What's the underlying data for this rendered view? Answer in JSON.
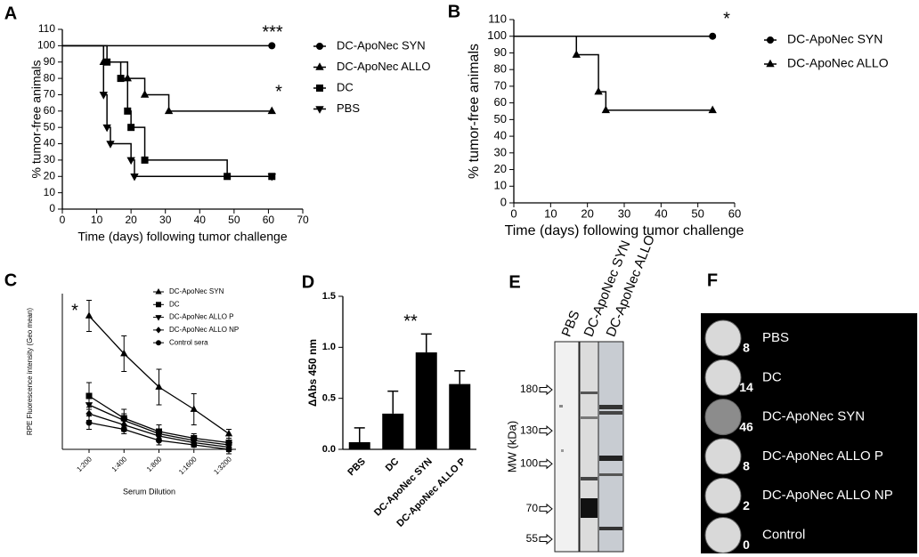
{
  "chart_data": [
    {
      "type": "step",
      "panel": "A",
      "xlabel": "Time (days) following tumor challenge",
      "ylabel": "% tumor-free animals",
      "xlim": [
        0,
        70
      ],
      "xticks": [
        0,
        10,
        20,
        30,
        40,
        50,
        60,
        70
      ],
      "ylim": [
        0,
        110
      ],
      "yticks": [
        0,
        10,
        20,
        30,
        40,
        50,
        60,
        70,
        80,
        90,
        100,
        110
      ],
      "legend": "right",
      "annotations": [
        "***",
        "*"
      ],
      "series": [
        {
          "name": "DC-ApoNec SYN",
          "color": "#000000",
          "marker": "circle",
          "x": [
            0,
            61
          ],
          "values": [
            100,
            100
          ]
        },
        {
          "name": "DC-ApoNec ALLO",
          "color": "#000000",
          "marker": "triangle-up",
          "x": [
            0,
            12,
            19,
            24,
            31,
            61
          ],
          "values": [
            100,
            90,
            80,
            70,
            60,
            60
          ]
        },
        {
          "name": "DC",
          "color": "#000000",
          "marker": "square",
          "x": [
            0,
            13,
            17,
            19,
            20,
            24,
            48,
            61
          ],
          "values": [
            100,
            90,
            80,
            60,
            50,
            30,
            20,
            20
          ]
        },
        {
          "name": "PBS",
          "color": "#000000",
          "marker": "triangle-down",
          "x": [
            0,
            12,
            13,
            14,
            20,
            21,
            61
          ],
          "values": [
            100,
            70,
            50,
            40,
            30,
            20,
            20
          ]
        }
      ]
    },
    {
      "type": "step",
      "panel": "B",
      "xlabel": "Time (days) following tumor challenge",
      "ylabel": "% tumor-free animals",
      "xlim": [
        0,
        60
      ],
      "xticks": [
        0,
        10,
        20,
        30,
        40,
        50,
        60
      ],
      "ylim": [
        0,
        110
      ],
      "yticks": [
        0,
        10,
        20,
        30,
        40,
        50,
        60,
        70,
        80,
        90,
        100,
        110
      ],
      "legend": "right",
      "annotations": [
        "*"
      ],
      "series": [
        {
          "name": "DC-ApoNec SYN",
          "color": "#000000",
          "marker": "circle",
          "x": [
            0,
            54
          ],
          "values": [
            100,
            100
          ]
        },
        {
          "name": "DC-ApoNec ALLO",
          "color": "#000000",
          "marker": "triangle-up",
          "x": [
            0,
            17,
            23,
            25,
            54
          ],
          "values": [
            100,
            88.9,
            66.7,
            55.6,
            55.6
          ]
        }
      ]
    },
    {
      "type": "line",
      "panel": "C",
      "xlabel": "Serum Dilution",
      "ylabel": "RPE Fluorescence intensity (Geo mean)",
      "categories": [
        "1:200",
        "1:400",
        "1:800",
        "1:1600",
        "1:3200"
      ],
      "ylim": [
        0,
        70
      ],
      "legend": "upper right",
      "annotations": [
        "*"
      ],
      "series": [
        {
          "name": "DC-ApoNec SYN",
          "color": "#000000",
          "marker": "triangle-up",
          "values": [
            60,
            43,
            28,
            18,
            7
          ],
          "errors": [
            7,
            8,
            8,
            7,
            2
          ]
        },
        {
          "name": "DC",
          "color": "#000000",
          "marker": "square",
          "values": [
            24,
            14,
            8,
            5,
            3
          ],
          "errors": [
            6,
            4,
            3,
            2,
            2
          ]
        },
        {
          "name": "DC-ApoNec ALLO P",
          "color": "#000000",
          "marker": "triangle-down",
          "values": [
            20,
            13,
            7,
            4,
            2
          ],
          "errors": [
            4,
            3,
            2,
            2,
            2
          ]
        },
        {
          "name": "DC-ApoNec ALLO NP",
          "color": "#000000",
          "marker": "diamond",
          "values": [
            16,
            11,
            6,
            3,
            1
          ],
          "errors": [
            3,
            3,
            2,
            2,
            2
          ]
        },
        {
          "name": "Control sera",
          "color": "#000000",
          "marker": "circle",
          "values": [
            12,
            9,
            4,
            2,
            0
          ],
          "errors": [
            3,
            2,
            2,
            1,
            2
          ]
        }
      ]
    },
    {
      "type": "bar",
      "panel": "D",
      "ylabel": "ΔAbs 450 nm",
      "categories": [
        "PBS",
        "DC",
        "DC-ApoNec SYN",
        "DC-ApoNec ALLO P"
      ],
      "values": [
        0.07,
        0.35,
        0.95,
        0.64
      ],
      "errors": [
        0.14,
        0.22,
        0.18,
        0.13
      ],
      "color": "#000000",
      "ylim": [
        0,
        1.5
      ],
      "yticks": [
        {
          "value": 0,
          "label": "0.0"
        },
        {
          "value": 0.5,
          "label": "0.5"
        },
        {
          "value": 1,
          "label": "1.0"
        },
        {
          "value": 1.5,
          "label": "1.5"
        }
      ],
      "annotations": [
        "**"
      ]
    },
    {
      "type": "blot",
      "panel": "E",
      "ylabel": "MW (kDa)",
      "ylog": true,
      "yticks": [
        180,
        130,
        100,
        70,
        55
      ],
      "categories": [
        "PBS",
        "DC-ApoNec SYN",
        "DC-ApoNec ALLO"
      ]
    },
    {
      "type": "plates",
      "panel": "F",
      "categories": [
        "PBS",
        "DC",
        "DC-ApoNec SYN",
        "DC-ApoNec ALLO P",
        "DC-ApoNec ALLO NP",
        "Control"
      ],
      "values": [
        8,
        14,
        46,
        8,
        2,
        0
      ]
    }
  ]
}
